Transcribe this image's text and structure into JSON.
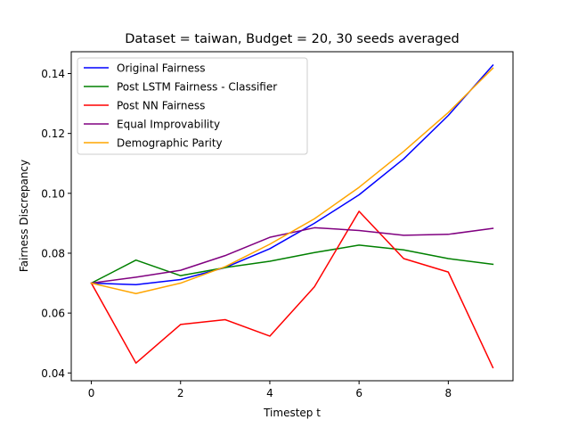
{
  "chart_data": {
    "type": "line",
    "title": "Dataset = taiwan, Budget = 20, 30 seeds averaged",
    "xlabel": "Timestep t",
    "ylabel": "Fairness Discrepancy",
    "x": [
      0,
      1,
      2,
      3,
      4,
      5,
      6,
      7,
      8,
      9
    ],
    "xlim": [
      -0.45,
      9.45
    ],
    "ylim": [
      0.0374,
      0.1473
    ],
    "xticks": [
      0,
      2,
      4,
      6,
      8
    ],
    "xtick_labels": [
      "0",
      "2",
      "4",
      "6",
      "8"
    ],
    "yticks": [
      0.04,
      0.06,
      0.08,
      0.1,
      0.12,
      0.14
    ],
    "ytick_labels": [
      "0.04",
      "0.06",
      "0.08",
      "0.10",
      "0.12",
      "0.14"
    ],
    "grid": false,
    "legend_position": "upper-left",
    "series": [
      {
        "name": "Original Fairness",
        "color": "#0000ff",
        "values": [
          0.07,
          0.0695,
          0.0712,
          0.0752,
          0.0815,
          0.09,
          0.0995,
          0.1115,
          0.126,
          0.1428
        ]
      },
      {
        "name": "Post LSTM Fairness - Classifier",
        "color": "#008000",
        "values": [
          0.07,
          0.0777,
          0.0725,
          0.0752,
          0.0773,
          0.0802,
          0.0827,
          0.0811,
          0.0782,
          0.0763
        ]
      },
      {
        "name": "Post NN Fairness",
        "color": "#ff0000",
        "values": [
          0.07,
          0.0433,
          0.0562,
          0.0578,
          0.0523,
          0.0688,
          0.094,
          0.0782,
          0.0737,
          0.0418
        ]
      },
      {
        "name": "Equal Improvability",
        "color": "#800080",
        "values": [
          0.07,
          0.072,
          0.0743,
          0.0792,
          0.0853,
          0.0885,
          0.0876,
          0.086,
          0.0863,
          0.0883
        ]
      },
      {
        "name": "Demographic Parity",
        "color": "#ffa500",
        "values": [
          0.07,
          0.0665,
          0.07,
          0.0755,
          0.083,
          0.0915,
          0.102,
          0.114,
          0.127,
          0.1418
        ]
      }
    ]
  }
}
